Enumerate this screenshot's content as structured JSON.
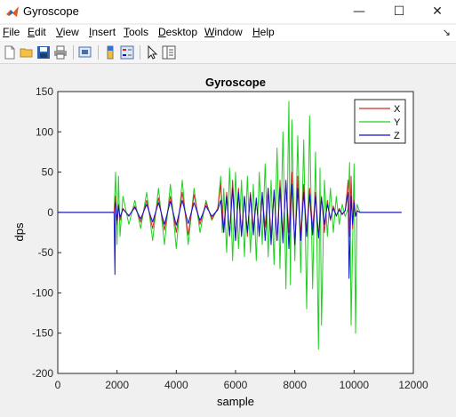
{
  "window": {
    "title": "Gyroscope",
    "minimize_glyph": "—",
    "maximize_glyph": "☐",
    "close_glyph": "✕"
  },
  "menu": [
    "File",
    "Edit",
    "View",
    "Insert",
    "Tools",
    "Desktop",
    "Window",
    "Help"
  ],
  "dock_glyph": "↘",
  "toolbar_icons": [
    "new-figure-icon",
    "open-file-icon",
    "save-icon",
    "print-icon",
    "print-preview-icon",
    "insert-colorbar-icon",
    "insert-legend-icon",
    "edit-plot-arrow-icon",
    "property-inspector-icon"
  ],
  "colors": {
    "X": "#d62728",
    "Y": "#1fd11f",
    "Z": "#1010c8"
  },
  "chart_data": {
    "type": "line",
    "title": "Gyroscope",
    "xlabel": "sample",
    "ylabel": "dps",
    "xlim": [
      0,
      12000
    ],
    "ylim": [
      -200,
      150
    ],
    "xticks": [
      0,
      2000,
      4000,
      6000,
      8000,
      10000,
      12000
    ],
    "yticks": [
      150,
      100,
      50,
      0,
      -50,
      -100,
      -150,
      -200
    ],
    "legend_position": "top-right",
    "grid": false,
    "series": [
      {
        "name": "X",
        "color": "#d62728",
        "x": [
          0,
          1900,
          1950,
          2000,
          2050,
          2100,
          2200,
          2400,
          2600,
          2800,
          3000,
          3200,
          3400,
          3600,
          3800,
          4000,
          4200,
          4400,
          4600,
          4800,
          5000,
          5200,
          5400,
          5500,
          5600,
          5700,
          5800,
          5900,
          6000,
          6100,
          6200,
          6300,
          6400,
          6500,
          6600,
          6700,
          6800,
          6900,
          7000,
          7100,
          7200,
          7300,
          7400,
          7500,
          7600,
          7700,
          7800,
          7900,
          8000,
          8100,
          8200,
          8300,
          8400,
          8500,
          8600,
          8700,
          8800,
          8900,
          9000,
          9100,
          9200,
          9300,
          9400,
          9500,
          9600,
          9700,
          9800,
          9850,
          9900,
          9950,
          10000,
          10050,
          10100,
          10200,
          11600
        ],
        "y": [
          0,
          0,
          20,
          -15,
          10,
          -10,
          5,
          -5,
          8,
          -12,
          15,
          -20,
          18,
          -22,
          20,
          -25,
          25,
          -28,
          22,
          -15,
          12,
          -8,
          5,
          35,
          -20,
          25,
          -30,
          40,
          -35,
          30,
          -25,
          20,
          -30,
          25,
          -20,
          15,
          -25,
          20,
          -18,
          30,
          -30,
          25,
          -35,
          40,
          -30,
          35,
          -25,
          50,
          -40,
          45,
          -30,
          35,
          -25,
          30,
          -20,
          25,
          -30,
          20,
          -25,
          15,
          -10,
          8,
          -5,
          5,
          -3,
          2,
          40,
          -30,
          45,
          -20,
          15,
          -5,
          2,
          0,
          0
        ]
      },
      {
        "name": "Y",
        "color": "#1fd11f",
        "x": [
          0,
          1900,
          1950,
          2000,
          2050,
          2100,
          2200,
          2400,
          2600,
          2800,
          3000,
          3200,
          3400,
          3600,
          3800,
          4000,
          4200,
          4400,
          4600,
          4800,
          5000,
          5200,
          5400,
          5500,
          5550,
          5600,
          5700,
          5800,
          5900,
          6000,
          6100,
          6200,
          6300,
          6400,
          6500,
          6600,
          6700,
          6800,
          6900,
          7000,
          7100,
          7200,
          7300,
          7400,
          7500,
          7600,
          7700,
          7800,
          7850,
          7900,
          8000,
          8100,
          8200,
          8300,
          8400,
          8500,
          8600,
          8700,
          8800,
          8850,
          8900,
          9000,
          9100,
          9200,
          9300,
          9400,
          9500,
          9600,
          9700,
          9800,
          9850,
          9900,
          10000,
          10050,
          10100,
          10200,
          11600
        ],
        "y": [
          0,
          0,
          50,
          -40,
          45,
          -30,
          20,
          -15,
          15,
          -20,
          25,
          -35,
          30,
          -40,
          35,
          -45,
          40,
          -40,
          30,
          -25,
          15,
          -10,
          5,
          45,
          -25,
          30,
          -50,
          55,
          -60,
          50,
          -45,
          40,
          -55,
          45,
          -50,
          35,
          -60,
          50,
          -40,
          60,
          -55,
          40,
          -65,
          80,
          -70,
          100,
          -95,
          138,
          -90,
          115,
          -60,
          95,
          -75,
          90,
          -120,
          120,
          -95,
          75,
          -170,
          55,
          -140,
          40,
          -30,
          30,
          -25,
          20,
          -15,
          10,
          -5,
          5,
          62,
          -140,
          60,
          -150,
          10,
          0,
          0
        ]
      },
      {
        "name": "Z",
        "color": "#1010c8",
        "x": [
          0,
          1900,
          1930,
          1950,
          2000,
          2050,
          2100,
          2200,
          2400,
          2600,
          2800,
          3000,
          3200,
          3400,
          3600,
          3800,
          4000,
          4200,
          4400,
          4600,
          4800,
          5000,
          5200,
          5400,
          5500,
          5600,
          5700,
          5800,
          5900,
          6000,
          6100,
          6200,
          6300,
          6400,
          6500,
          6600,
          6700,
          6800,
          6900,
          7000,
          7100,
          7200,
          7300,
          7400,
          7500,
          7600,
          7700,
          7800,
          7900,
          8000,
          8100,
          8200,
          8300,
          8400,
          8500,
          8600,
          8700,
          8800,
          8900,
          9000,
          9100,
          9200,
          9300,
          9400,
          9500,
          9600,
          9700,
          9800,
          9830,
          9900,
          9950,
          10000,
          10050,
          10100,
          10200,
          11600
        ],
        "y": [
          0,
          0,
          -77,
          12,
          -10,
          8,
          -6,
          4,
          -4,
          6,
          -8,
          10,
          -12,
          12,
          -15,
          14,
          -16,
          15,
          -14,
          12,
          -10,
          8,
          -5,
          3,
          15,
          -25,
          20,
          -28,
          30,
          -35,
          25,
          -30,
          20,
          -25,
          22,
          -28,
          18,
          -30,
          25,
          -35,
          30,
          -40,
          28,
          -35,
          30,
          -38,
          40,
          -45,
          35,
          -40,
          30,
          -35,
          25,
          -30,
          22,
          -28,
          20,
          -32,
          18,
          -15,
          10,
          -8,
          5,
          -4,
          3,
          -2,
          2,
          25,
          -82,
          20,
          -15,
          12,
          -5,
          2,
          0,
          0
        ]
      }
    ]
  }
}
